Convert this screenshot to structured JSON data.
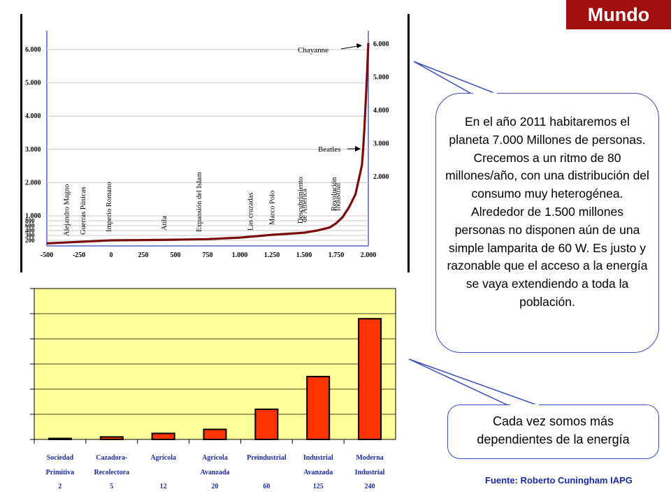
{
  "badge": {
    "label": "Mundo"
  },
  "population_chart": {
    "chart_data": {
      "type": "line",
      "x_ticks": [
        "-500",
        "-250",
        "0",
        "250",
        "500",
        "750",
        "1.000",
        "1.250",
        "1.500",
        "1.750",
        "2.000"
      ],
      "y_ticks_left": [
        "6.000",
        "5.000",
        "4.000",
        "3.000",
        "2.000",
        "1.000",
        "800",
        "600",
        "400",
        "300",
        "200"
      ],
      "y_ticks_right": [
        "6.000",
        "5.000",
        "4.000",
        "3.000",
        "2.000"
      ],
      "xlim": [
        -500,
        2000
      ],
      "ylim": [
        0,
        6500
      ],
      "series": [
        {
          "x": [
            -500,
            -250,
            0,
            250,
            500,
            750,
            1000,
            1250,
            1500,
            1600,
            1700,
            1750,
            1800,
            1850,
            1900,
            1950,
            1960,
            1970,
            1980,
            1990,
            2000
          ],
          "y": [
            100,
            150,
            200,
            210,
            220,
            240,
            290,
            380,
            450,
            520,
            620,
            760,
            960,
            1260,
            1650,
            2520,
            3020,
            3700,
            4450,
            5300,
            6200
          ]
        }
      ],
      "events": [
        {
          "label": "Alejandro Magno",
          "x": -330
        },
        {
          "label": "Guerras Púnicas",
          "x": -200
        },
        {
          "label": "Imperio Romano",
          "x": 0
        },
        {
          "label": "Atila",
          "x": 430
        },
        {
          "label": "Expansión del Islam",
          "x": 700
        },
        {
          "label": "Las cruzadas",
          "x": 1100
        },
        {
          "label": "Marco Polo",
          "x": 1270
        },
        {
          "label": "Descubrimiento",
          "x": 1490
        },
        {
          "label": "de América",
          "x": 1520
        },
        {
          "label": "Revolución",
          "x": 1750
        },
        {
          "label": "Industrial",
          "x": 1780
        }
      ],
      "annotations": [
        {
          "label": "Chayanne",
          "x": 1975,
          "y": 5900
        },
        {
          "label": "Beatles",
          "x": 1960,
          "y": 3000
        }
      ]
    }
  },
  "energy_chart": {
    "chart_data": {
      "type": "bar",
      "categories": [
        [
          "Sociedad",
          "Primitiva"
        ],
        [
          "Cazadora-",
          "Recolectora"
        ],
        [
          "Agrícola",
          ""
        ],
        [
          "Agrícola",
          "Avanzada"
        ],
        [
          "Preindustrial",
          ""
        ],
        [
          "Industrial",
          "Avanzada"
        ],
        [
          "Moderna",
          "Industrial"
        ]
      ],
      "values": [
        2,
        5,
        12,
        20,
        60,
        125,
        240
      ],
      "value_labels": [
        "2",
        "5",
        "12",
        "20",
        "60",
        "125",
        "240"
      ],
      "ylim": [
        0,
        300
      ],
      "grid": true
    }
  },
  "bubble_main": {
    "text": "En el año 2011 habitaremos el planeta 7.000 Millones de personas. Crecemos a un ritmo de 80 millones/año, con una distribución del consumo muy heterogénea. Alrededor de 1.500 millones personas no disponen aún de una simple lamparita de 60 W. Es justo y razonable que el  acceso a la energía se vaya extendiendo a toda la población."
  },
  "bubble_secondary": {
    "text": "Cada vez somos más dependientes de la energía"
  },
  "source": {
    "text": "Fuente: Roberto Cuningham IAPG"
  },
  "colors": {
    "badge": "#a01010",
    "curve": "#7a0c0c",
    "bar": "#ff3300",
    "plot_bg": "#ffff99",
    "axis_labels": "#1a2aa0",
    "bubble_border": "#3a4fb8"
  }
}
